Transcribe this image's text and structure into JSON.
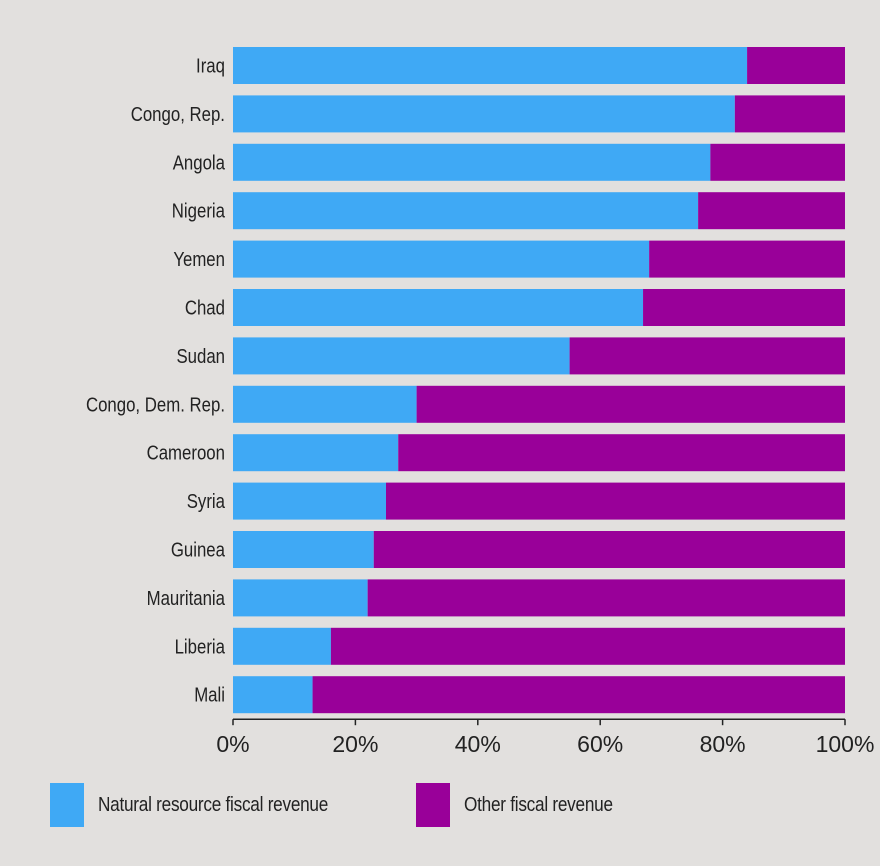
{
  "chart_data": {
    "type": "bar",
    "orientation": "horizontal",
    "stacked": true,
    "categories": [
      "Iraq",
      "Congo, Rep.",
      "Angola",
      "Nigeria",
      "Yemen",
      "Chad",
      "Sudan",
      "Congo, Dem. Rep.",
      "Cameroon",
      "Syria",
      "Guinea",
      "Mauritania",
      "Liberia",
      "Mali"
    ],
    "series": [
      {
        "name": "Natural resource fiscal revenue",
        "color": "#3fa9f5",
        "values": [
          84,
          82,
          78,
          76,
          68,
          67,
          55,
          30,
          27,
          25,
          23,
          22,
          16,
          13
        ]
      },
      {
        "name": "Other fiscal revenue",
        "color": "#990099",
        "values": [
          16,
          18,
          22,
          24,
          32,
          33,
          45,
          70,
          73,
          75,
          77,
          78,
          84,
          87
        ]
      }
    ],
    "xlim": [
      0,
      100
    ],
    "xticks": [
      "0%",
      "20%",
      "40%",
      "60%",
      "80%",
      "100%"
    ],
    "grid": false,
    "legend_position": "bottom",
    "background": "#e2e0de"
  }
}
